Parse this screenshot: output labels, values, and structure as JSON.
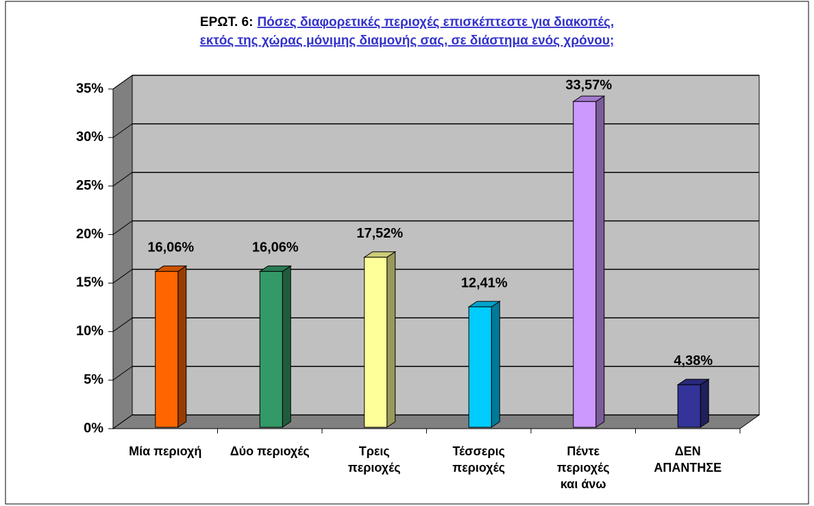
{
  "chart_data": {
    "type": "bar3d",
    "title_prefix": "ΕΡΩΤ. 6:",
    "title": [
      "Πόσες διαφορετικές περιοχές επισκέπτεστε για διακοπές,",
      "εκτός της χώρας μόνιμης διαμονής σας, σε διάστημα ενός χρόνου;"
    ],
    "categories": [
      [
        "Μία περιοχή"
      ],
      [
        "Δύο περιοχές"
      ],
      [
        "Τρεις",
        "περιοχές"
      ],
      [
        "Τέσσερις",
        "περιοχές"
      ],
      [
        "Πέντε",
        "περιοχές",
        "και άνω"
      ],
      [
        "ΔΕΝ",
        "ΑΠΑΝΤΗΣΕ"
      ]
    ],
    "values": [
      16.06,
      16.06,
      17.52,
      12.41,
      33.57,
      4.38
    ],
    "value_labels": [
      "16,06%",
      "16,06%",
      "17,52%",
      "12,41%",
      "33,57%",
      "4,38%"
    ],
    "colors": [
      "#ff6600",
      "#339966",
      "#ffff99",
      "#00ccff",
      "#cc99ff",
      "#333399"
    ],
    "ylim": [
      0,
      35
    ],
    "yticks": [
      {
        "value": 0,
        "label": "0%"
      },
      {
        "value": 5,
        "label": "5%"
      },
      {
        "value": 10,
        "label": "10%"
      },
      {
        "value": 15,
        "label": "15%"
      },
      {
        "value": 20,
        "label": "20%"
      },
      {
        "value": 25,
        "label": "25%"
      },
      {
        "value": 30,
        "label": "30%"
      },
      {
        "value": 35,
        "label": "35%"
      }
    ],
    "grid": true
  }
}
